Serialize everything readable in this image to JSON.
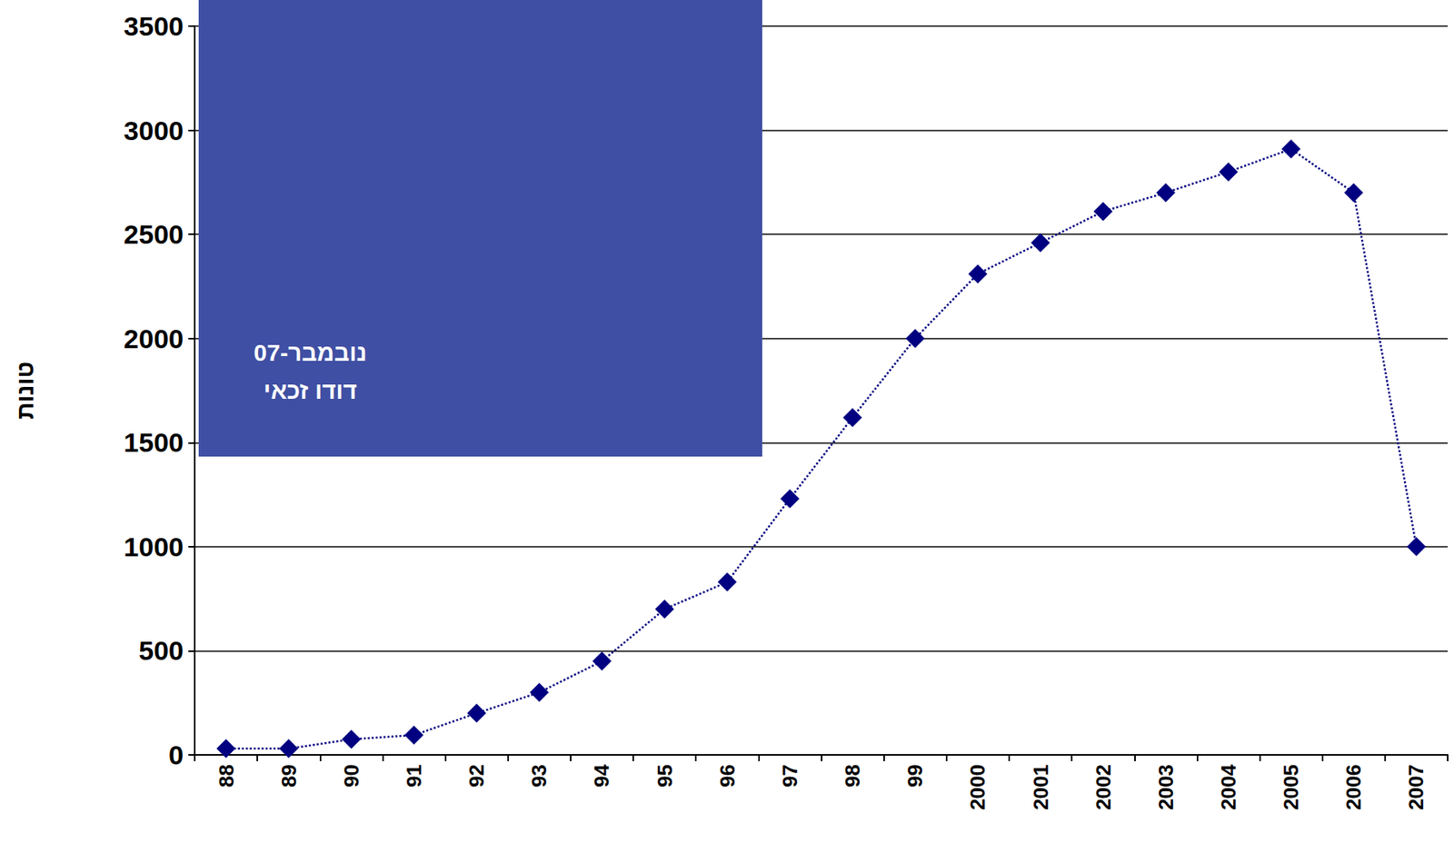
{
  "chart_data": {
    "type": "line",
    "y_label": "טונות",
    "annotations": [
      "נובמבר-07",
      "דודו זכאי"
    ],
    "categories": [
      "88",
      "89",
      "90",
      "91",
      "92",
      "93",
      "94",
      "95",
      "96",
      "97",
      "98",
      "99",
      "2000",
      "2001",
      "2002",
      "2003",
      "2004",
      "2005",
      "2006",
      "2007"
    ],
    "values": [
      30,
      30,
      75,
      95,
      200,
      300,
      450,
      700,
      830,
      1230,
      1620,
      2000,
      2310,
      2460,
      2610,
      2700,
      2800,
      2910,
      2700,
      1000
    ],
    "color": "#000080",
    "marker": "diamond",
    "line_style": "dotted",
    "ylim": [
      0,
      3500
    ],
    "yticks": [
      0,
      500,
      1000,
      1500,
      2000,
      2500,
      3000,
      3500
    ],
    "grid": true
  }
}
